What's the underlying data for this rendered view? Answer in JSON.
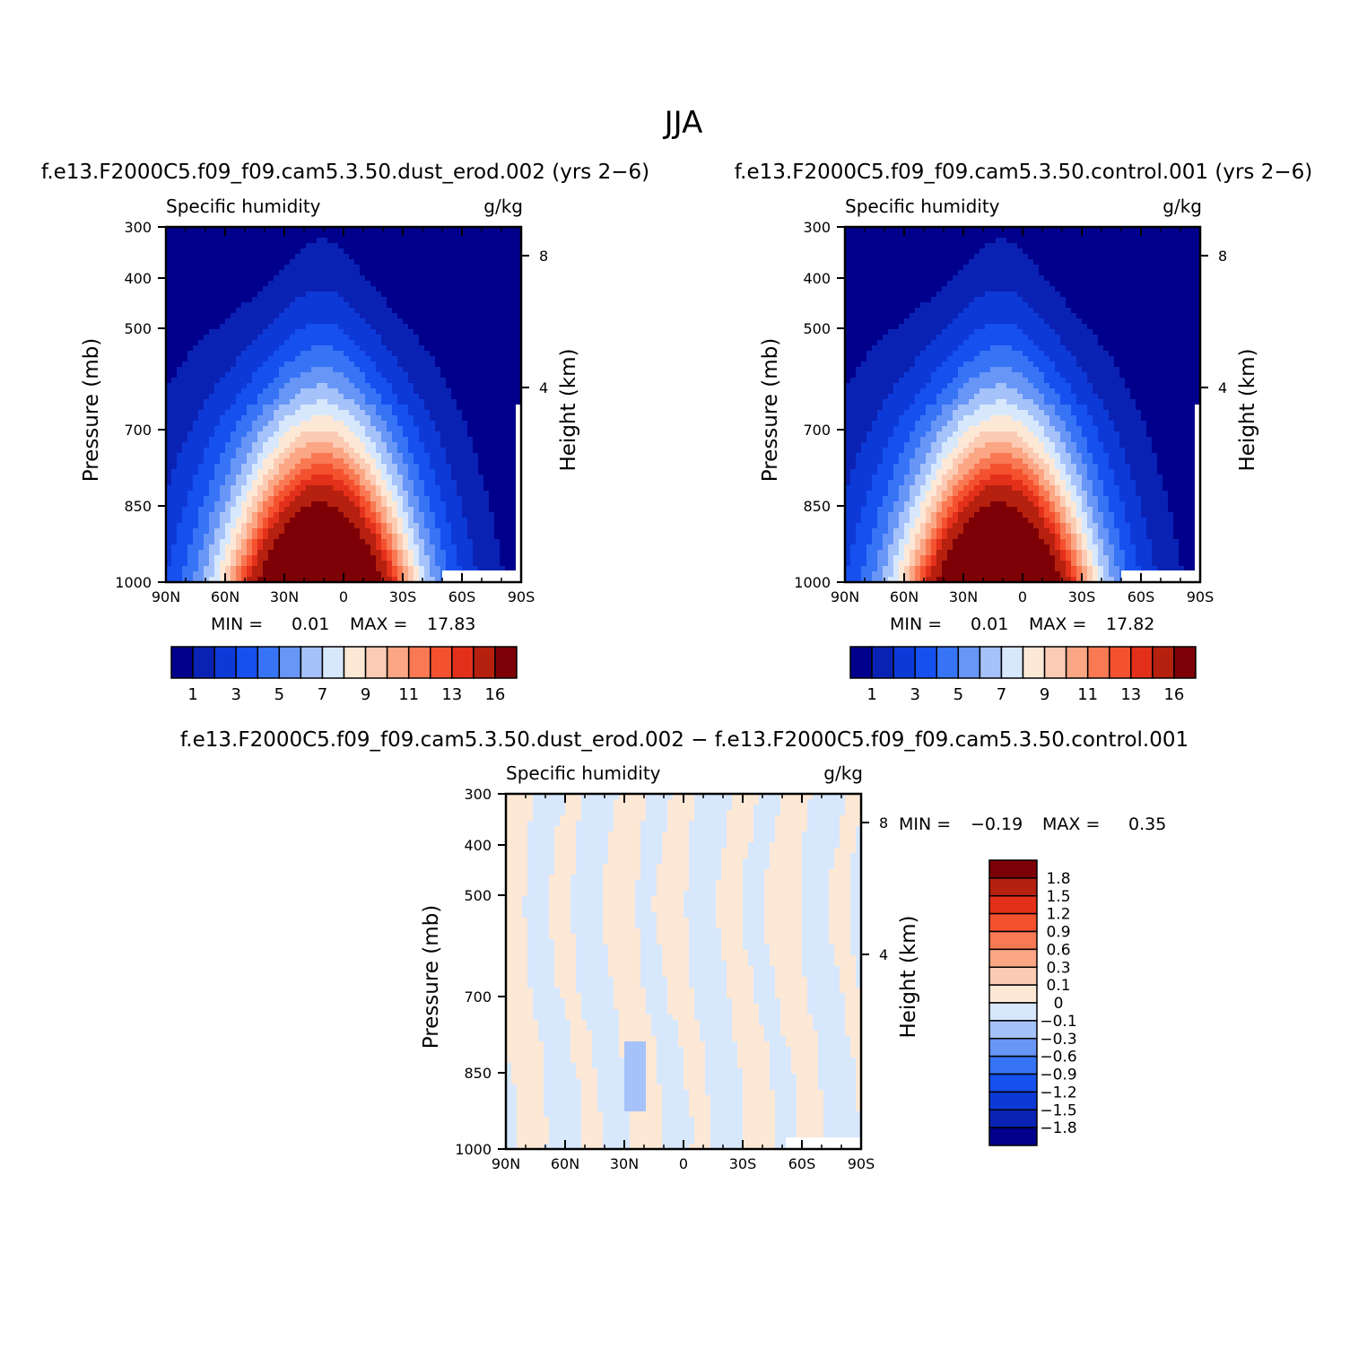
{
  "page": {
    "main_title": "JJA"
  },
  "chart_data": [
    {
      "type": "contour",
      "id": "panel-dust",
      "title": "f.e13.F2000C5.f09_f09.cam5.3.50.dust_erod.002 (yrs 2−6)",
      "left_label": "Specific humidity",
      "right_label": "g/kg",
      "ylabel": "Pressure (mb)",
      "ylabel_right": "Height (km)",
      "x_ticks": [
        "90N",
        "60N",
        "30N",
        "0",
        "30S",
        "60S",
        "90S"
      ],
      "y_ticks": [
        "300",
        "400",
        "500",
        "700",
        "850",
        "1000"
      ],
      "y_ticks_right": [
        "8",
        "4"
      ],
      "stats": {
        "min_label": "MIN =",
        "min": "0.01",
        "max_label": "MAX =",
        "max": "17.83"
      },
      "levels": [
        1,
        2,
        3,
        4,
        5,
        6,
        7,
        8,
        9,
        10,
        11,
        12,
        13,
        14,
        16
      ],
      "colorbar_labels": [
        "1",
        "3",
        "5",
        "7",
        "9",
        "11",
        "13",
        "16"
      ],
      "colors": [
        "#00008c",
        "#0a22b4",
        "#0d3ad7",
        "#1650ef",
        "#3773f5",
        "#6896f7",
        "#a6c2fa",
        "#d7e8fd",
        "#fde8d6",
        "#fccbb4",
        "#fba684",
        "#f87953",
        "#f4512e",
        "#e3301b",
        "#b5200f",
        "#7d0006"
      ]
    },
    {
      "type": "contour",
      "id": "panel-control",
      "title": "f.e13.F2000C5.f09_f09.cam5.3.50.control.001 (yrs 2−6)",
      "left_label": "Specific humidity",
      "right_label": "g/kg",
      "ylabel": "Pressure (mb)",
      "ylabel_right": "Height (km)",
      "x_ticks": [
        "90N",
        "60N",
        "30N",
        "0",
        "30S",
        "60S",
        "90S"
      ],
      "y_ticks": [
        "300",
        "400",
        "500",
        "700",
        "850",
        "1000"
      ],
      "y_ticks_right": [
        "8",
        "4"
      ],
      "stats": {
        "min_label": "MIN =",
        "min": "0.01",
        "max_label": "MAX =",
        "max": "17.82"
      },
      "levels": [
        1,
        2,
        3,
        4,
        5,
        6,
        7,
        8,
        9,
        10,
        11,
        12,
        13,
        14,
        16
      ],
      "colorbar_labels": [
        "1",
        "3",
        "5",
        "7",
        "9",
        "11",
        "13",
        "16"
      ],
      "colors": [
        "#00008c",
        "#0a22b4",
        "#0d3ad7",
        "#1650ef",
        "#3773f5",
        "#6896f7",
        "#a6c2fa",
        "#d7e8fd",
        "#fde8d6",
        "#fccbb4",
        "#fba684",
        "#f87953",
        "#f4512e",
        "#e3301b",
        "#b5200f",
        "#7d0006"
      ]
    },
    {
      "type": "contour",
      "id": "panel-diff",
      "title": "f.e13.F2000C5.f09_f09.cam5.3.50.dust_erod.002 − f.e13.F2000C5.f09_f09.cam5.3.50.control.001",
      "left_label": "Specific humidity",
      "right_label": "g/kg",
      "ylabel": "Pressure (mb)",
      "ylabel_right": "Height (km)",
      "x_ticks": [
        "90N",
        "60N",
        "30N",
        "0",
        "30S",
        "60S",
        "90S"
      ],
      "y_ticks": [
        "300",
        "400",
        "500",
        "700",
        "850",
        "1000"
      ],
      "y_ticks_right": [
        "8",
        "4"
      ],
      "stats": {
        "min_label": "MIN =",
        "min": "−0.19",
        "max_label": "MAX =",
        "max": "0.35"
      },
      "levels": [
        1.8,
        1.5,
        1.2,
        0.9,
        0.6,
        0.3,
        0.1,
        0,
        -0.1,
        -0.3,
        -0.6,
        -0.9,
        -1.2,
        -1.5,
        -1.8
      ],
      "colorbar_labels": [
        "1.8",
        "1.5",
        "1.2",
        "0.9",
        "0.6",
        "0.3",
        "0.1",
        "0",
        "−0.1",
        "−0.3",
        "−0.6",
        "−0.9",
        "−1.2",
        "−1.5",
        "−1.8"
      ],
      "colors": [
        "#7d0006",
        "#b5200f",
        "#e3301b",
        "#f4512e",
        "#f87953",
        "#fba684",
        "#fccbb4",
        "#fde8d6",
        "#d7e8fd",
        "#a6c2fa",
        "#6896f7",
        "#3773f5",
        "#1650ef",
        "#0d3ad7",
        "#0a22b4",
        "#00008c"
      ]
    }
  ]
}
